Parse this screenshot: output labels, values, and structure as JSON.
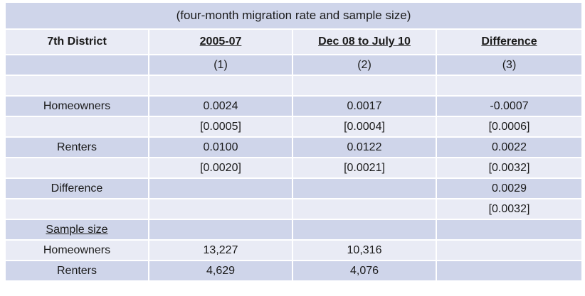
{
  "caption": "(four-month migration rate and sample size)",
  "header": [
    "7th District",
    "2005-07",
    "Dec 08 to July 10",
    "Difference"
  ],
  "col_numbers": [
    "(1)",
    "(2)",
    "(3)"
  ],
  "rows": [
    {
      "label": "",
      "c1": "",
      "c2": "",
      "c3": ""
    },
    {
      "label": "Homeowners",
      "c1": "0.0024",
      "c2": "0.0017",
      "c3": "-0.0007"
    },
    {
      "label": "",
      "c1": "[0.0005]",
      "c2": "[0.0004]",
      "c3": "[0.0006]"
    },
    {
      "label": "Renters",
      "c1": "0.0100",
      "c2": "0.0122",
      "c3": "0.0022"
    },
    {
      "label": "",
      "c1": "[0.0020]",
      "c2": "[0.0021]",
      "c3": "[0.0032]"
    },
    {
      "label": "Difference",
      "c1": "",
      "c2": "",
      "c3": "0.0029"
    },
    {
      "label": "",
      "c1": "",
      "c2": "",
      "c3": "[0.0032]"
    },
    {
      "label": "Sample size",
      "c1": "",
      "c2": "",
      "c3": ""
    },
    {
      "label": "Homeowners",
      "c1": "13,227",
      "c2": "10,316",
      "c3": ""
    },
    {
      "label": "Renters",
      "c1": "4,629",
      "c2": "4,076",
      "c3": ""
    }
  ],
  "colors": {
    "dark_row": "#cfd5ea",
    "light_row": "#e9ebf5"
  }
}
